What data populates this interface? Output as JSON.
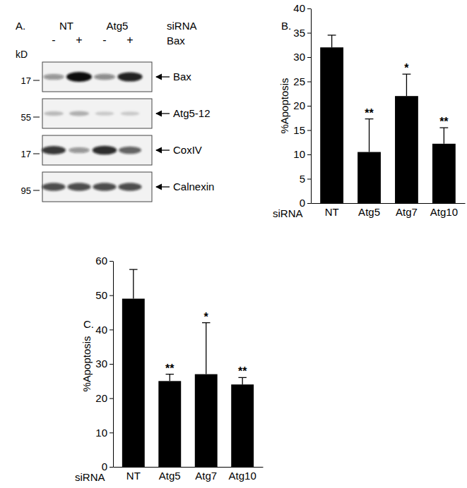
{
  "blot": {
    "panel": "A.",
    "units_label": "kD",
    "group_title": "siRNA",
    "groups": [
      "NT",
      "Atg5"
    ],
    "treatment": "Bax",
    "lanes": [
      "-",
      "+",
      "-",
      "+"
    ],
    "rows": [
      {
        "label": "Bax",
        "marker": 17,
        "signal": [
          0.35,
          1,
          0.4,
          0.9
        ]
      },
      {
        "label": "Atg5-12",
        "marker": 55,
        "signal": [
          0.15,
          0.2,
          0.08,
          0.08
        ]
      },
      {
        "label": "CoxIV",
        "marker": 17,
        "signal": [
          0.8,
          0.35,
          0.85,
          0.6
        ]
      },
      {
        "label": "Calnexin",
        "marker": 95,
        "signal": [
          0.7,
          0.7,
          0.7,
          0.7
        ]
      }
    ]
  },
  "chart_data": [
    {
      "type": "bar",
      "panel": "B.",
      "y_label": "%Apoptosis",
      "x_label": "siRNA",
      "categories": [
        "NT",
        "Atg5",
        "Atg7",
        "Atg10"
      ],
      "values": [
        32,
        10.5,
        22,
        12.2
      ],
      "errors": [
        2.5,
        6.8,
        4.5,
        3.3
      ],
      "significance": [
        null,
        "**",
        "*",
        "**"
      ],
      "color": "#000000",
      "ylim": [
        0,
        40
      ],
      "yticks": [
        0,
        5,
        10,
        15,
        20,
        25,
        30,
        35,
        40
      ]
    },
    {
      "type": "bar",
      "panel": "C.",
      "y_label": "%Apoptosis",
      "x_label": "siRNA",
      "categories": [
        "NT",
        "Atg5",
        "Atg7",
        "Atg10"
      ],
      "values": [
        49,
        25,
        27,
        24
      ],
      "errors": [
        8.5,
        2,
        15,
        2
      ],
      "significance": [
        null,
        "**",
        "*",
        "**"
      ],
      "color": "#000000",
      "ylim": [
        0,
        60
      ],
      "yticks": [
        0,
        10,
        20,
        30,
        40,
        50,
        60
      ]
    }
  ]
}
